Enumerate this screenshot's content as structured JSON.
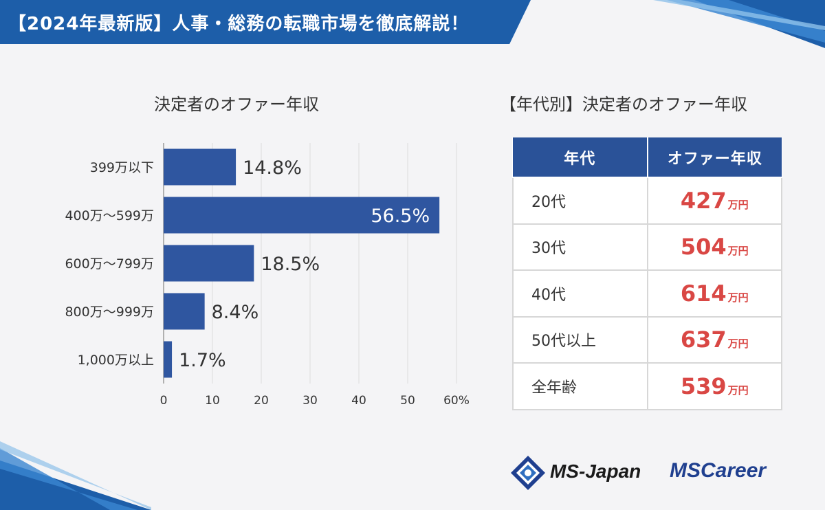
{
  "header": {
    "banner_text": "【2024年最新版】人事・総務の転職市場を徹底解説！",
    "brand_color": "#1d5ea9"
  },
  "chart_data": {
    "type": "bar",
    "orientation": "horizontal",
    "title": "決定者のオファー年収",
    "categories": [
      "399万以下",
      "400万～599万",
      "600万～799万",
      "800万～999万",
      "1,000万以上"
    ],
    "values": [
      14.8,
      56.5,
      18.5,
      8.4,
      1.7
    ],
    "value_labels": [
      "14.8%",
      "56.5%",
      "18.5%",
      "8.4%",
      "1.7%"
    ],
    "xlim": [
      0,
      60
    ],
    "x_ticks": [
      "0",
      "10",
      "20",
      "30",
      "40",
      "50",
      "60%"
    ],
    "grid": true,
    "bar_color": "#2f56a0"
  },
  "table": {
    "title": "【年代別】決定者のオファー年収",
    "headers": [
      "年代",
      "オファー年収"
    ],
    "rows": [
      {
        "age": "20代",
        "value": "427",
        "unit": "万円"
      },
      {
        "age": "30代",
        "value": "504",
        "unit": "万円"
      },
      {
        "age": "40代",
        "value": "614",
        "unit": "万円"
      },
      {
        "age": "50代以上",
        "value": "637",
        "unit": "万円"
      },
      {
        "age": "全年齢",
        "value": "539",
        "unit": "万円"
      }
    ],
    "header_color": "#2a5298",
    "value_color": "#d94744"
  },
  "logos": {
    "msjapan": "MS-Japan",
    "mscareer": "MSCareer"
  }
}
